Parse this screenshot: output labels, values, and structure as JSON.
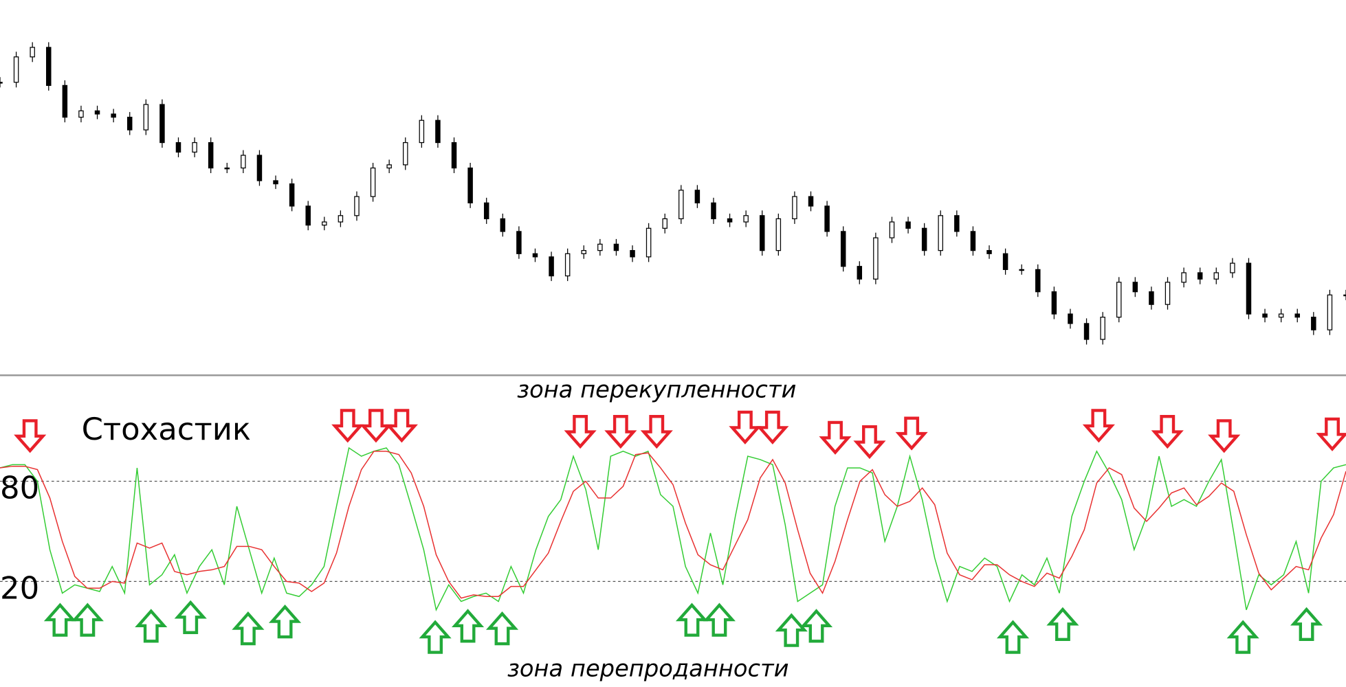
{
  "chart_data": [
    {
      "type": "candlestick",
      "color": "#000000",
      "values": [
        85,
        93,
        96,
        84,
        74,
        76,
        75,
        74,
        70,
        78,
        66,
        63,
        66,
        58,
        58,
        62,
        54,
        53,
        46,
        40,
        41,
        43,
        49,
        58,
        59,
        66,
        73,
        66,
        58,
        47,
        42,
        38,
        31,
        30,
        24,
        31,
        32,
        34,
        32,
        30,
        39,
        42,
        51,
        47,
        42,
        41,
        43,
        32,
        42,
        49,
        46,
        38,
        27,
        23,
        36,
        41,
        39,
        32,
        43,
        38,
        32,
        31,
        26,
        26,
        19,
        12,
        9,
        4,
        11,
        22,
        19,
        15,
        22,
        25,
        23,
        25,
        28,
        12,
        11,
        12,
        11,
        7,
        18,
        18
      ],
      "ylim": [
        0,
        100
      ]
    },
    {
      "type": "line",
      "title": "Стохастик",
      "annotations": [
        "зона перекупленности",
        "зона перепроданности"
      ],
      "ylim": [
        -43,
        143
      ],
      "yticks": [
        20,
        80
      ],
      "grid": true,
      "series": [
        {
          "color": "#33cc33",
          "values": [
            88,
            90,
            90,
            80,
            39,
            13,
            18,
            16,
            14,
            29,
            13,
            88,
            18,
            24,
            36,
            13,
            29,
            39,
            18,
            65,
            39,
            13,
            34,
            13,
            11,
            18,
            29,
            65,
            100,
            95,
            98,
            100,
            90,
            65,
            39,
            3,
            18,
            8,
            11,
            13,
            8,
            29,
            13,
            39,
            59,
            69,
            95,
            75,
            39,
            95,
            98,
            95,
            98,
            72,
            65,
            29,
            13,
            49,
            18,
            59,
            95,
            93,
            90,
            54,
            8,
            13,
            18,
            65,
            88,
            88,
            85,
            44,
            65,
            95,
            69,
            34,
            8,
            29,
            26,
            34,
            29,
            8,
            24,
            18,
            34,
            13,
            59,
            80,
            98,
            85,
            69,
            39,
            59,
            95,
            65,
            69,
            65,
            80,
            93,
            49,
            3,
            24,
            18,
            24,
            44,
            13,
            80,
            88,
            90
          ]
        },
        {
          "color": "#e83030",
          "values": [
            88,
            89,
            89,
            87,
            70,
            44,
            23,
            16,
            16,
            20,
            19,
            43,
            40,
            43,
            26,
            24,
            26,
            27,
            29,
            41,
            41,
            39,
            29,
            20,
            19,
            14,
            19,
            37,
            65,
            87,
            98,
            98,
            96,
            85,
            65,
            36,
            20,
            10,
            12,
            11,
            11,
            17,
            17,
            27,
            37,
            56,
            74,
            80,
            70,
            70,
            77,
            96,
            97,
            88,
            78,
            55,
            36,
            30,
            27,
            42,
            57,
            82,
            93,
            79,
            51,
            25,
            13,
            32,
            57,
            80,
            87,
            72,
            65,
            68,
            76,
            66,
            37,
            24,
            21,
            30,
            30,
            24,
            20,
            17,
            25,
            22,
            35,
            51,
            79,
            88,
            84,
            64,
            56,
            64,
            73,
            76,
            66,
            71,
            79,
            74,
            48,
            25,
            15,
            22,
            29,
            27,
            46,
            60,
            86
          ]
        }
      ]
    }
  ]
}
